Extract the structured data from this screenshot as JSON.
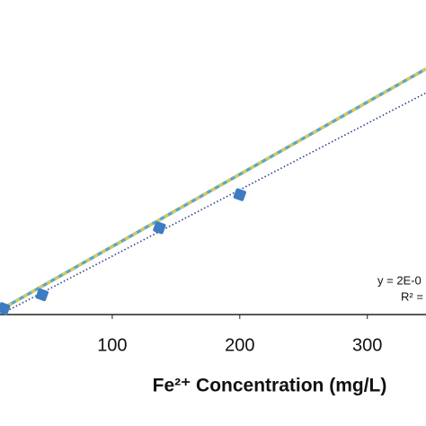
{
  "chart_data": {
    "type": "scatter",
    "x_label": "Fe²⁺ Concentration (mg/L)",
    "xlim": [
      12,
      346
    ],
    "xticks": [
      100,
      200,
      300
    ],
    "ylim": [
      0,
      1.05
    ],
    "annotations": [
      "y = 2E-0",
      "R² ="
    ],
    "series": [
      {
        "style": "dashed",
        "colors": [
          "#5aa9c6",
          "#d9c75c"
        ],
        "x": [
          12,
          346
        ],
        "values": [
          0.015,
          0.82
        ]
      },
      {
        "style": "dotted",
        "colors": [
          "#2b3f8e"
        ],
        "x": [
          12,
          346
        ],
        "values": [
          0.0,
          0.74
        ]
      },
      {
        "style": "markers",
        "colors": [
          "#3d7cc2"
        ],
        "x": [
          15,
          45,
          137,
          200
        ],
        "values": [
          0.02,
          0.066,
          0.29,
          0.4
        ]
      }
    ]
  }
}
